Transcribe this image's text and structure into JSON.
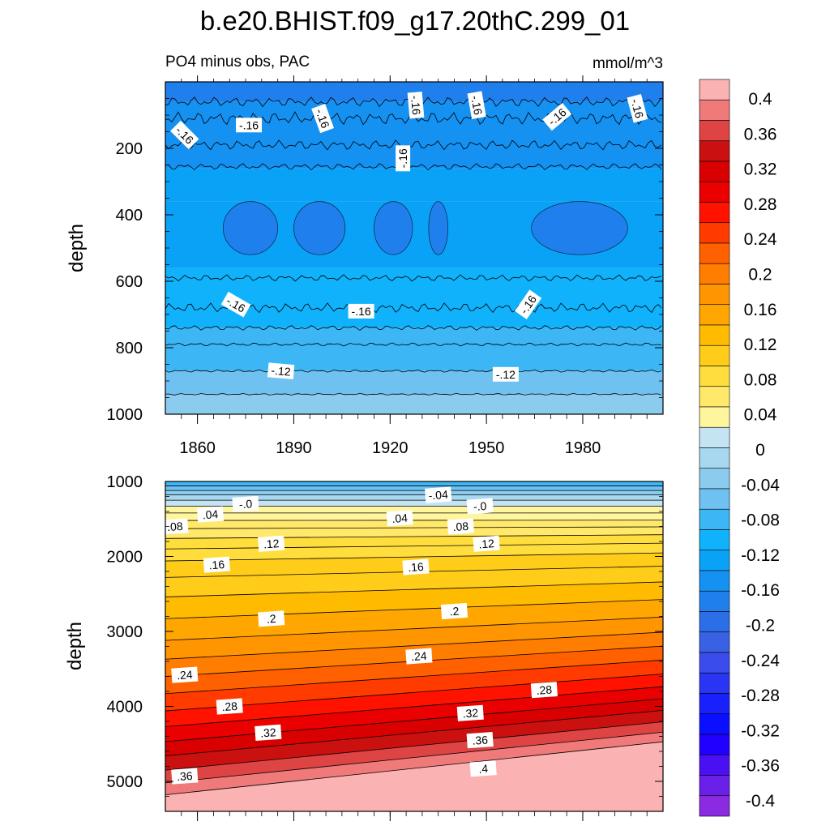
{
  "title": "b.e20.BHIST.f09_g17.20thC.299_01",
  "panel_top": {
    "left_label": "PO4 minus obs, PAC",
    "right_label": "mmol/m^3",
    "ylabel": "depth"
  },
  "panel_bottom": {
    "ylabel": "depth"
  },
  "colorbar": {
    "labels": [
      "0.4",
      "0.36",
      "0.32",
      "0.28",
      "0.24",
      "0.2",
      "0.16",
      "0.12",
      "0.08",
      "0.04",
      "0",
      "-0.04",
      "-0.08",
      "-0.12",
      "-0.16",
      "-0.2",
      "-0.24",
      "-0.28",
      "-0.32",
      "-0.36",
      "-0.4"
    ],
    "colors": [
      "#fbb2b2",
      "#f07979",
      "#de4444",
      "#cb1010",
      "#d80000",
      "#ea0000",
      "#ff1300",
      "#ff3b00",
      "#ff6000",
      "#ff7d00",
      "#ff9500",
      "#ffa700",
      "#ffbb00",
      "#ffcc19",
      "#ffdd3d",
      "#ffe86a",
      "#fff59d",
      "#c4e4f4",
      "#a8d8f0",
      "#8bcbee",
      "#6ec1f0",
      "#3cb6f4",
      "#10b2fb",
      "#0aa2f6",
      "#1491f1",
      "#1f80ed",
      "#2b6ee8",
      "#3961e3",
      "#3b4cec",
      "#2a35f3",
      "#1820fb",
      "#0a10ff",
      "#2200ff",
      "#4a10f3",
      "#6a20e8",
      "#8a2be2"
    ]
  },
  "chart_data": [
    {
      "type": "heatmap",
      "title": "PO4 minus obs, PAC",
      "units": "mmol/m^3",
      "ylabel": "depth",
      "x_range": [
        1850,
        2005
      ],
      "x_ticks": [
        "1860",
        "1890",
        "1920",
        "1950",
        "1980"
      ],
      "y_range": [
        0,
        1000
      ],
      "y_ticks": [
        "200",
        "400",
        "600",
        "800",
        "1000"
      ],
      "y_inverted": true,
      "contour_labels": [
        "-.16",
        "-.16",
        "-.16",
        "-.16",
        "-.16",
        "-.16",
        "-.16",
        "-.16",
        "-.16",
        "-.16",
        "-.16",
        "-.12",
        "-.12"
      ],
      "profile": [
        {
          "depth": 0,
          "value": -0.2
        },
        {
          "depth": 100,
          "value": -0.19
        },
        {
          "depth": 200,
          "value": -0.18
        },
        {
          "depth": 300,
          "value": -0.18
        },
        {
          "depth": 400,
          "value": -0.19
        },
        {
          "depth": 500,
          "value": -0.18
        },
        {
          "depth": 600,
          "value": -0.17
        },
        {
          "depth": 700,
          "value": -0.16
        },
        {
          "depth": 800,
          "value": -0.15
        },
        {
          "depth": 900,
          "value": -0.13
        },
        {
          "depth": 1000,
          "value": -0.11
        }
      ]
    },
    {
      "type": "heatmap",
      "ylabel": "depth",
      "x_range": [
        1850,
        2005
      ],
      "y_range": [
        1000,
        5400
      ],
      "y_ticks": [
        "1000",
        "2000",
        "3000",
        "4000",
        "5000"
      ],
      "y_inverted": true,
      "contour_labels": [
        "-.04",
        "-.0",
        "-.0",
        ".04",
        ".04",
        ".08",
        ".08",
        ".12",
        ".12",
        ".16",
        ".16",
        ".2",
        ".2",
        ".24",
        ".24",
        ".28",
        ".28",
        ".32",
        ".32",
        ".36",
        ".36",
        ".4"
      ],
      "profile": [
        {
          "depth": 1000,
          "value": -0.1
        },
        {
          "depth": 1200,
          "value": -0.02
        },
        {
          "depth": 1500,
          "value": 0.05
        },
        {
          "depth": 2000,
          "value": 0.13
        },
        {
          "depth": 2500,
          "value": 0.18
        },
        {
          "depth": 3000,
          "value": 0.22
        },
        {
          "depth": 3500,
          "value": 0.26
        },
        {
          "depth": 4000,
          "value": 0.3
        },
        {
          "depth": 4500,
          "value": 0.35
        },
        {
          "depth": 5000,
          "value": 0.39
        },
        {
          "depth": 5400,
          "value": 0.42
        }
      ]
    }
  ]
}
